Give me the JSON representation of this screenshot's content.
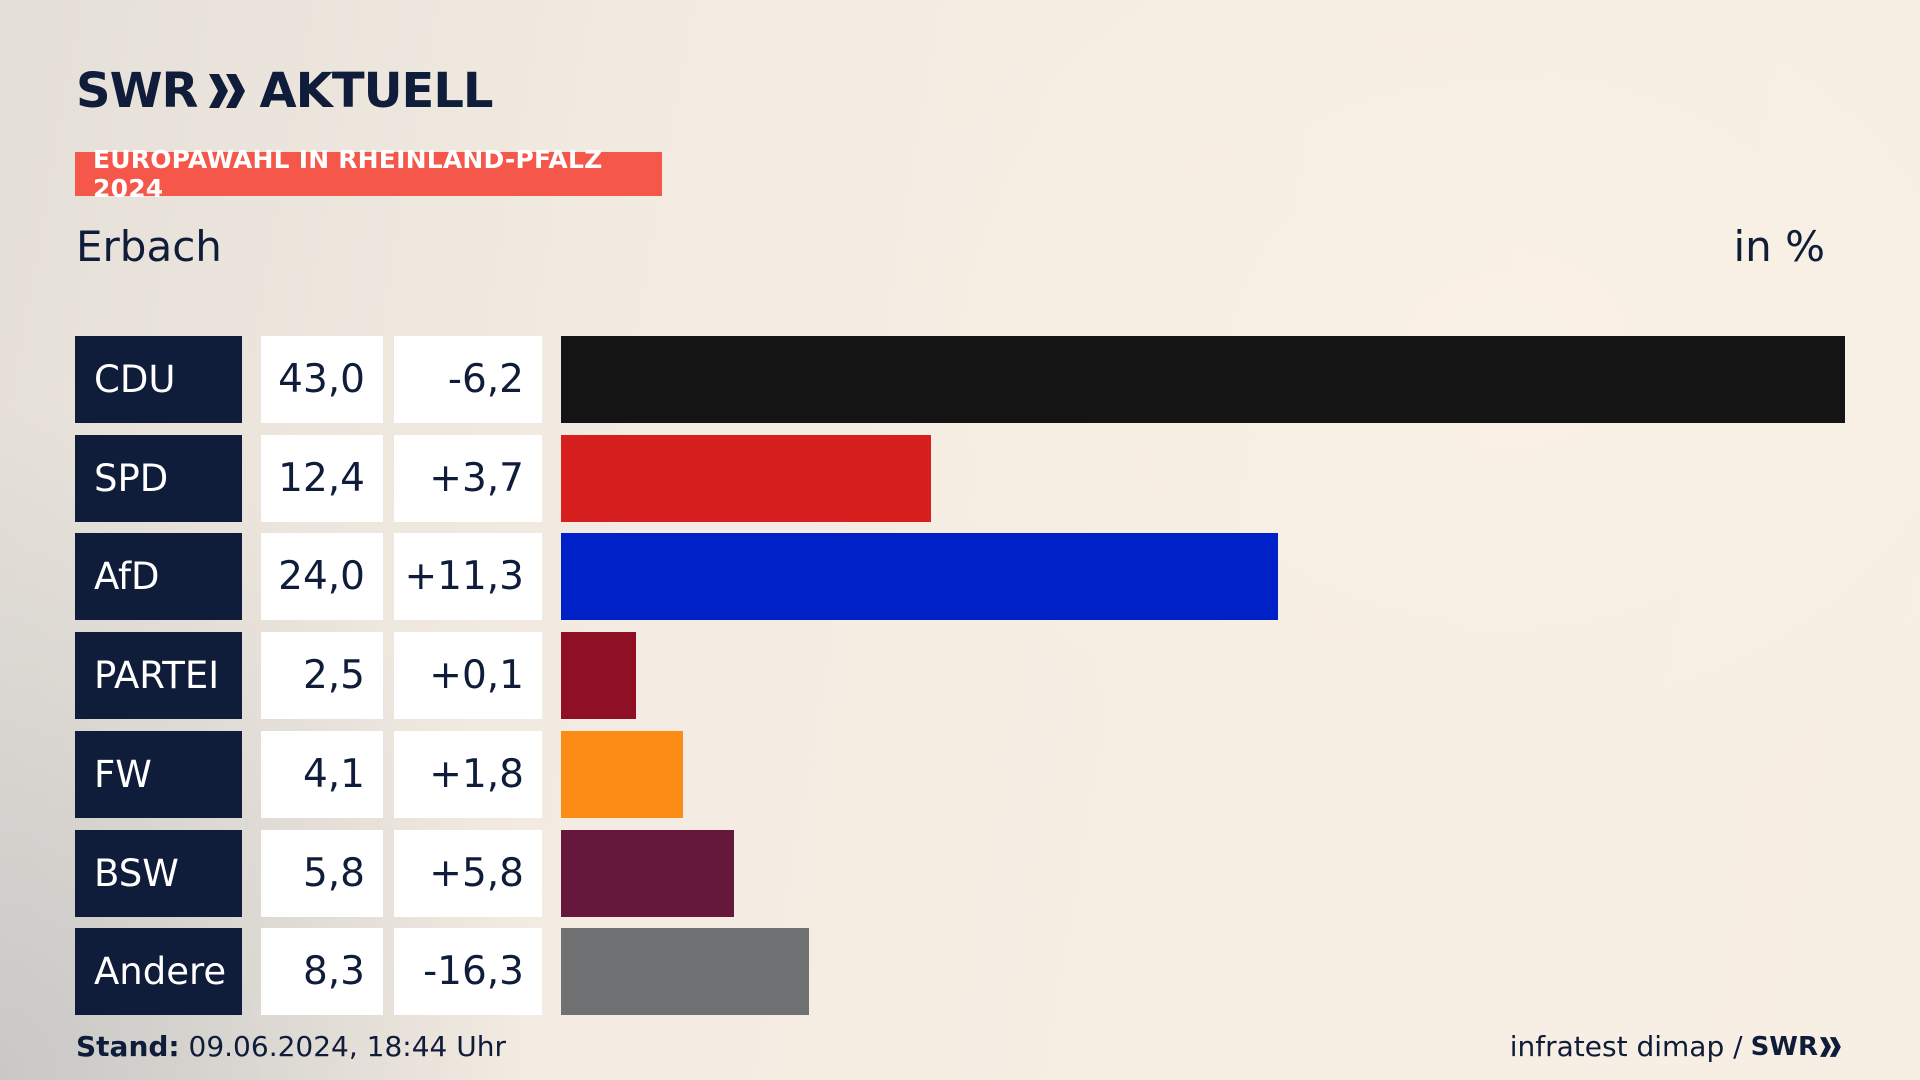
{
  "header": {
    "logo_text": "SWR",
    "logo_suffix": "AKTUELL",
    "badge": "EUROPAWAHL IN RHEINLAND-PFALZ 2024",
    "region": "Erbach",
    "unit": "in %"
  },
  "chart_data": {
    "type": "bar",
    "orientation": "horizontal",
    "categories": [
      "CDU",
      "SPD",
      "AfD",
      "PARTEI",
      "FW",
      "BSW",
      "Andere"
    ],
    "values": [
      43.0,
      12.4,
      24.0,
      2.5,
      4.1,
      5.8,
      8.3
    ],
    "value_labels": [
      "43,0",
      "12,4",
      "24,0",
      "2,5",
      "4,1",
      "5,8",
      "8,3"
    ],
    "diff_labels": [
      "-6,2",
      "+3,7",
      "+11,3",
      "+0,1",
      "+1,8",
      "+5,8",
      "-16,3"
    ],
    "colors": [
      "#141414",
      "#d71f1f",
      "#0021c8",
      "#8f1024",
      "#fd8c17",
      "#65183c",
      "#707173"
    ],
    "xlim": [
      0,
      43.0
    ],
    "title": "Erbach",
    "unit": "in %"
  },
  "footer": {
    "stand_label": "Stand:",
    "stand_value": "09.06.2024, 18:44 Uhr",
    "source": "infratest dimap /",
    "source_logo": "SWR"
  }
}
